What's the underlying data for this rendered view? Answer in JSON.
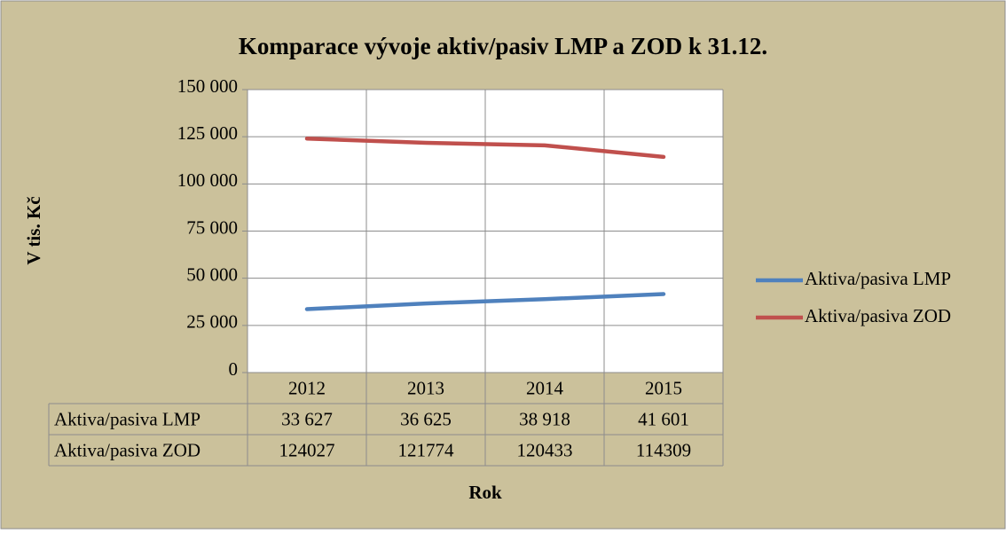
{
  "chart_data": {
    "type": "line",
    "title": "Komparace vývoje aktiv/pasiv LMP a ZOD k 31.12.",
    "y_label": "V tis. Kč",
    "x_label": "Rok",
    "categories": [
      "2012",
      "2013",
      "2014",
      "2015"
    ],
    "series": [
      {
        "name": "Aktiva/pasiva LMP",
        "color": "#4f81bd",
        "values": [
          33627,
          36625,
          38918,
          41601
        ],
        "value_labels": [
          "33 627",
          "36 625",
          "38 918",
          "41 601"
        ]
      },
      {
        "name": "Aktiva/pasiva ZOD",
        "color": "#c0504d",
        "values": [
          124027,
          121774,
          120433,
          114309
        ]
      }
    ],
    "ylim": [
      0,
      150000
    ],
    "yticks": [
      0,
      {
        "value": 25000,
        "label": "25 000"
      },
      {
        "value": 50000,
        "label": "50 000"
      },
      {
        "value": 75000,
        "label": "75 000"
      },
      {
        "value": 100000,
        "label": "100 000"
      },
      {
        "value": 125000,
        "label": "125 000"
      },
      {
        "value": 150000,
        "label": "150 000"
      }
    ],
    "grid": true,
    "legend": "right",
    "data_table": true
  }
}
